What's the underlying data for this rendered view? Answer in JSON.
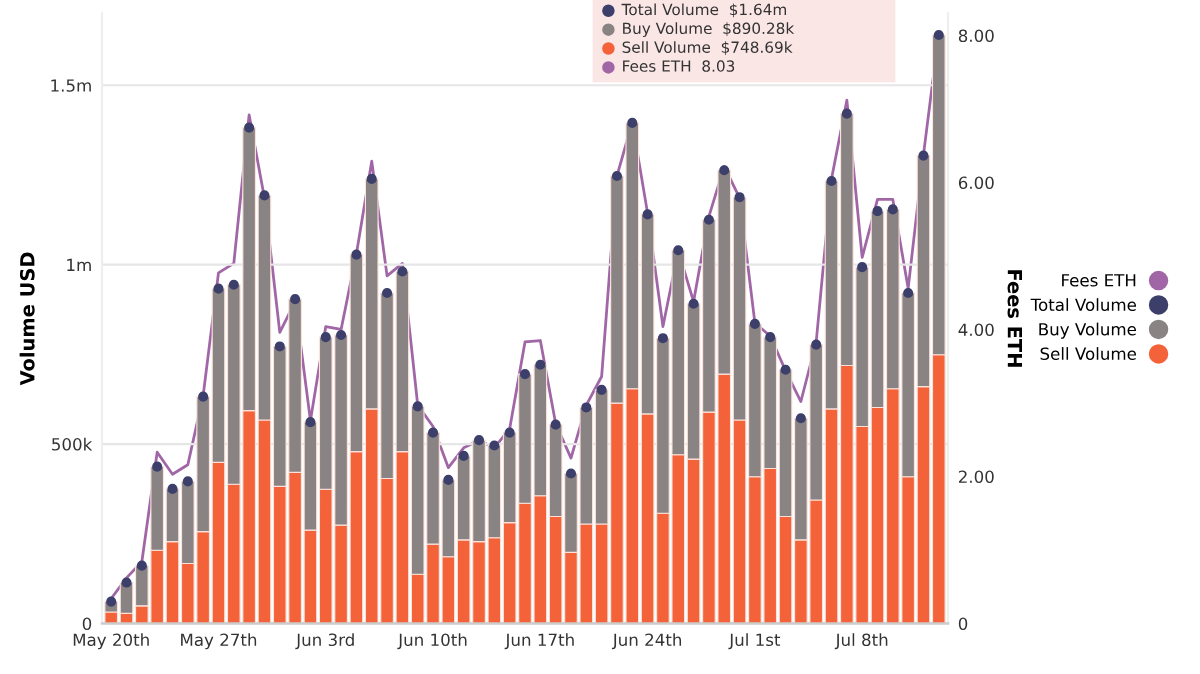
{
  "chart_data": {
    "type": "bar",
    "stacked": true,
    "xlabel": null,
    "ylabel": "Volume USD",
    "y2label": "Fees ETH",
    "categories": [
      "May 20th",
      null,
      null,
      null,
      null,
      null,
      null,
      "May 27th",
      null,
      null,
      null,
      null,
      null,
      null,
      "Jun 3rd",
      null,
      null,
      null,
      null,
      null,
      null,
      "Jun 10th",
      null,
      null,
      null,
      null,
      null,
      null,
      "Jun 17th",
      null,
      null,
      null,
      null,
      null,
      null,
      "Jun 24th",
      null,
      null,
      null,
      null,
      null,
      null,
      "Jul 1st",
      null,
      null,
      null,
      null,
      null,
      null,
      "Jul 8th",
      null,
      null,
      null,
      null,
      null
    ],
    "series": [
      {
        "name": "Sell Volume",
        "color": "#f4623a",
        "values": [
          32000,
          28000,
          49000,
          204000,
          228000,
          167000,
          256000,
          449000,
          388000,
          593000,
          567000,
          382000,
          421000,
          260000,
          374000,
          274000,
          479000,
          598000,
          404000,
          479000,
          137000,
          221000,
          186000,
          233000,
          228000,
          239000,
          281000,
          335000,
          356000,
          298000,
          198000,
          277000,
          277000,
          614000,
          654000,
          584000,
          307000,
          470000,
          458000,
          589000,
          695000,
          567000,
          409000,
          432000,
          298000,
          233000,
          344000,
          598000,
          719000,
          549000,
          602000,
          654000,
          409000,
          660000,
          749000
        ]
      },
      {
        "name": "Buy Volume",
        "color": "#8a8384",
        "values": [
          29000,
          86000,
          112000,
          233000,
          147000,
          229000,
          376000,
          484000,
          556000,
          789000,
          626000,
          390000,
          483000,
          301000,
          424000,
          530000,
          549000,
          641000,
          517000,
          502000,
          468000,
          311000,
          214000,
          234000,
          283000,
          257000,
          251000,
          360000,
          365000,
          256000,
          220000,
          325000,
          374000,
          633000,
          741000,
          556000,
          488000,
          570000,
          433000,
          536000,
          568000,
          621000,
          426000,
          366000,
          409000,
          339000,
          433000,
          635000,
          702000,
          444000,
          547000,
          500000,
          512000,
          644000,
          891000
        ]
      },
      {
        "name": "Total Volume",
        "type": "scatter",
        "marker": "circle",
        "color": "#3d3f6b",
        "values": [
          61000,
          114000,
          161000,
          437000,
          375000,
          396000,
          632000,
          933000,
          944000,
          1382000,
          1193000,
          772000,
          904000,
          561000,
          798000,
          804000,
          1028000,
          1239000,
          921000,
          981000,
          605000,
          532000,
          400000,
          467000,
          511000,
          496000,
          532000,
          695000,
          721000,
          554000,
          418000,
          602000,
          651000,
          1247000,
          1395000,
          1140000,
          795000,
          1040000,
          891000,
          1125000,
          1263000,
          1188000,
          835000,
          798000,
          707000,
          572000,
          777000,
          1233000,
          1421000,
          993000,
          1149000,
          1154000,
          921000,
          1304000,
          1640000
        ]
      },
      {
        "name": "Fees ETH",
        "type": "line",
        "axis": "y2",
        "marker": "none",
        "color": "#a066a6",
        "values": [
          0.34,
          0.62,
          0.84,
          2.33,
          2.03,
          2.16,
          3.1,
          4.77,
          4.9,
          6.92,
          5.79,
          3.96,
          4.38,
          2.76,
          4.04,
          4.0,
          5.03,
          6.29,
          4.73,
          4.9,
          2.97,
          2.68,
          2.12,
          2.39,
          2.49,
          2.39,
          2.65,
          3.83,
          3.85,
          2.72,
          2.25,
          2.97,
          3.36,
          6.09,
          6.82,
          5.58,
          4.04,
          5.07,
          4.38,
          5.54,
          6.22,
          5.79,
          4.09,
          3.91,
          3.44,
          3.02,
          3.83,
          6.05,
          7.12,
          4.98,
          5.77,
          5.77,
          4.56,
          6.38,
          8.03
        ]
      }
    ],
    "ylim": [
      0,
      1700000
    ],
    "yticks": [
      0,
      {
        "value": 500000,
        "label": "500k"
      },
      {
        "value": 1000000,
        "label": "1m"
      },
      {
        "value": 1500000,
        "label": "1.5m"
      }
    ],
    "y2lim": [
      0,
      8.3
    ],
    "y2ticks": [
      0,
      {
        "value": 2,
        "label": "2.00"
      },
      {
        "value": 4,
        "label": "4.00"
      },
      {
        "value": 6,
        "label": "6.00"
      },
      {
        "value": 8,
        "label": "8.00"
      }
    ],
    "grid": "y",
    "legend": "right",
    "annotations": [
      "Total Volume  $1.64m",
      "Buy Volume  $890.28k",
      "Sell Volume  $748.69k",
      "Fees ETH  8.03"
    ]
  }
}
